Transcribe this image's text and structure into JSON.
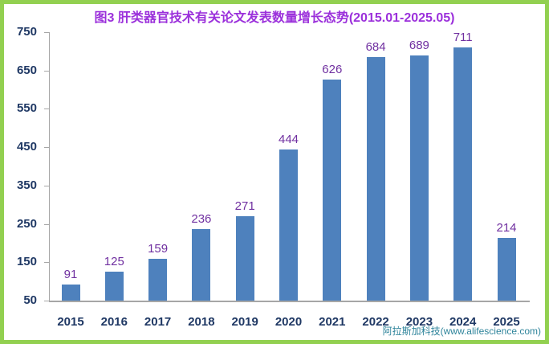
{
  "title": "图3 肝类器官技术有关论文发表数量增长态势(2015.01-2025.05)",
  "watermark": "阿拉斯加科技(www.alifescience.com)",
  "colors": {
    "border": "#92D050",
    "bar": "#4E81BD",
    "title_text": "#9B30DB",
    "data_label": "#7030A0",
    "axis_text": "#1F3864",
    "axis_line": "#A6A6A6",
    "watermark_text": "#2E849B"
  },
  "chart_data": {
    "type": "bar",
    "title": "图3 肝类器官技术有关论文发表数量增长态势(2015.01-2025.05)",
    "categories": [
      "2015",
      "2016",
      "2017",
      "2018",
      "2019",
      "2020",
      "2021",
      "2022",
      "2023",
      "2024",
      "2025"
    ],
    "values": [
      91,
      125,
      159,
      236,
      271,
      444,
      626,
      684,
      689,
      711,
      214
    ],
    "xlabel": "",
    "ylabel": "",
    "ylim": [
      50,
      750
    ],
    "yticks": [
      50,
      150,
      250,
      350,
      450,
      550,
      650,
      750
    ],
    "grid": false,
    "legend": null,
    "data_labels_shown": true
  }
}
